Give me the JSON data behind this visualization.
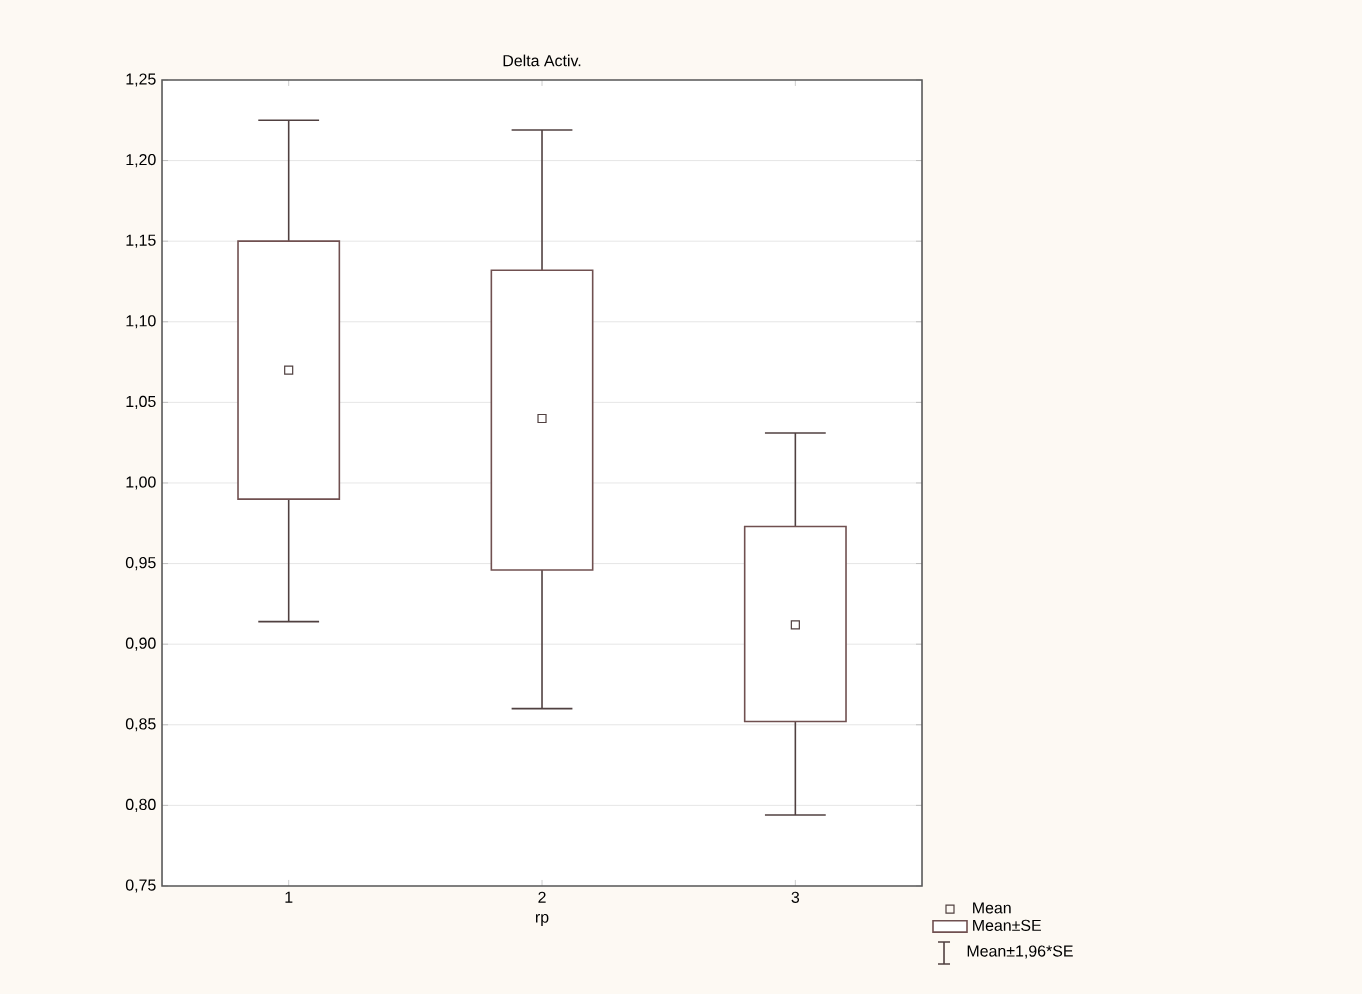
{
  "chart_data": {
    "type": "bar",
    "title": "Delta Activ.",
    "xlabel": "rp",
    "categories": [
      "1",
      "2",
      "3"
    ],
    "ylim": [
      0.75,
      1.25
    ],
    "yticks": [
      {
        "value": 0.75,
        "label": "0,75"
      },
      {
        "value": 0.8,
        "label": "0,80"
      },
      {
        "value": 0.85,
        "label": "0,85"
      },
      {
        "value": 0.9,
        "label": "0,90"
      },
      {
        "value": 0.95,
        "label": "0,95"
      },
      {
        "value": 1.0,
        "label": "1,00"
      },
      {
        "value": 1.05,
        "label": "1,05"
      },
      {
        "value": 1.1,
        "label": "1,10"
      },
      {
        "value": 1.15,
        "label": "1,15"
      },
      {
        "value": 1.2,
        "label": "1,20"
      },
      {
        "value": 1.25,
        "label": "1,25"
      }
    ],
    "grid": "y",
    "legend": "bottom right",
    "annotations": [
      "Mean±1,96*SE"
    ],
    "series": [
      {
        "name": "Mean",
        "type": "scatter",
        "marker": "square",
        "color": "#504040",
        "values": [
          1.07,
          1.04,
          0.912
        ],
        "errors": [
          [
            0.914,
            1.225
          ],
          [
            0.86,
            1.219
          ],
          [
            0.794,
            1.031
          ]
        ]
      },
      {
        "name": "Mean±SE",
        "color": "#705050",
        "base": [
          0.99,
          0.946,
          0.852
        ],
        "values": [
          0.16,
          0.186,
          0.121
        ]
      }
    ]
  }
}
